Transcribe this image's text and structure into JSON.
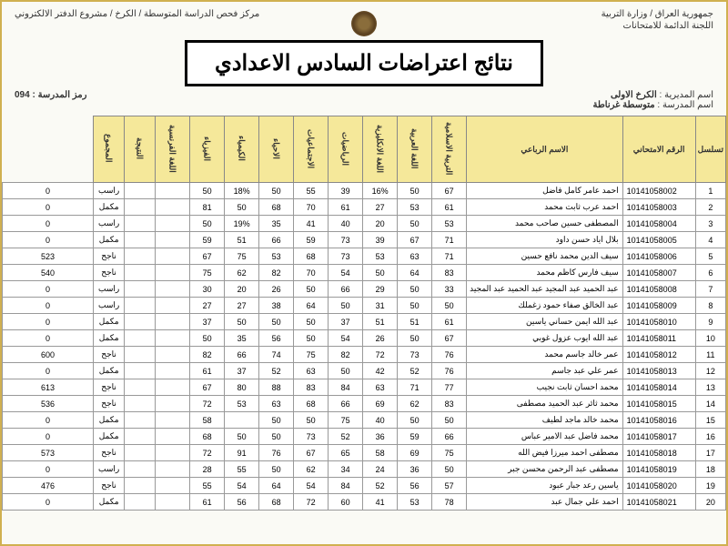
{
  "header": {
    "right1": "جمهورية العراق / وزارة التربية",
    "right2": "اللجنة الدائمة للامتحانات",
    "left1": "مركز فحص الدراسة المتوسطة /  الكرخ  / مشروع الدفتر الالكتروني",
    "school_code_label": "رمز المدرسة : ",
    "school_code": "094",
    "directorate_label": "اسم المديرية : ",
    "directorate": "الكرخ الاولى",
    "school_label": "اسم المدرسة : ",
    "school": "متوسطة غرناطة"
  },
  "title": "نتائج اعتراضات السادس الاعدادي",
  "columns": [
    "تسلسل",
    "الرقم الامتحاني",
    "الاسم الرباعي",
    "التربية الاسلامية",
    "اللغة العربية",
    "اللغة الانكليزية",
    "الرياضيات",
    "الاجتماعيات",
    "الاحياء",
    "الكيمياء",
    "الفيزياء",
    "اللغة الفرنسية",
    "النتيجة",
    "المجموع"
  ],
  "rows": [
    {
      "seq": "1",
      "exam": "10141058002",
      "name": "احمد عامر كامل فاضل",
      "s": [
        "67",
        "50",
        "16%",
        "39",
        "55",
        "50",
        "18%",
        "50",
        "",
        ""
      ],
      "res": "راسب",
      "tot": "0"
    },
    {
      "seq": "2",
      "exam": "10141058003",
      "name": "احمد عرب ثابت محمد",
      "s": [
        "61",
        "53",
        "27",
        "61",
        "70",
        "68",
        "50",
        "81",
        "",
        ""
      ],
      "res": "مكمل",
      "tot": "0"
    },
    {
      "seq": "3",
      "exam": "10141058004",
      "name": "المصطفى حسين صاحب محمد",
      "s": [
        "53",
        "50",
        "20",
        "40",
        "41",
        "35",
        "19%",
        "50",
        "",
        ""
      ],
      "res": "راسب",
      "tot": "0"
    },
    {
      "seq": "4",
      "exam": "10141058005",
      "name": "بلال اياد حسن داود",
      "s": [
        "71",
        "67",
        "39",
        "73",
        "59",
        "66",
        "51",
        "59",
        "",
        ""
      ],
      "res": "مكمل",
      "tot": "0"
    },
    {
      "seq": "5",
      "exam": "10141058006",
      "name": "سيف الدين محمد نافع حسين",
      "s": [
        "71",
        "63",
        "53",
        "73",
        "68",
        "53",
        "75",
        "67",
        "",
        ""
      ],
      "res": "ناجح",
      "tot": "523"
    },
    {
      "seq": "6",
      "exam": "10141058007",
      "name": "سيف فارس كاظم محمد",
      "s": [
        "83",
        "64",
        "50",
        "54",
        "70",
        "82",
        "62",
        "75",
        "",
        ""
      ],
      "res": "ناجح",
      "tot": "540"
    },
    {
      "seq": "7",
      "exam": "10141058008",
      "name": "عبد الحميد عبد المجيد عبد الحميد عبد المجيد",
      "s": [
        "33",
        "50",
        "29",
        "66",
        "50",
        "26",
        "20",
        "30",
        "",
        ""
      ],
      "res": "راسب",
      "tot": "0"
    },
    {
      "seq": "8",
      "exam": "10141058009",
      "name": "عبد الخالق صفاء حمود زغملك",
      "s": [
        "50",
        "50",
        "31",
        "50",
        "64",
        "38",
        "27",
        "27",
        "",
        ""
      ],
      "res": "راسب",
      "tot": "0"
    },
    {
      "seq": "9",
      "exam": "10141058010",
      "name": "عبد الله ايمن حساني ياسين",
      "s": [
        "61",
        "51",
        "51",
        "37",
        "50",
        "50",
        "50",
        "37",
        "",
        ""
      ],
      "res": "مكمل",
      "tot": "0"
    },
    {
      "seq": "10",
      "exam": "10141058011",
      "name": "عبد الله ايوب عزول غوبي",
      "s": [
        "67",
        "50",
        "26",
        "54",
        "50",
        "56",
        "35",
        "50",
        "",
        ""
      ],
      "res": "مكمل",
      "tot": "0"
    },
    {
      "seq": "11",
      "exam": "10141058012",
      "name": "عمر خالد جاسم محمد",
      "s": [
        "76",
        "73",
        "72",
        "82",
        "75",
        "74",
        "66",
        "82",
        "",
        ""
      ],
      "res": "ناجح",
      "tot": "600"
    },
    {
      "seq": "12",
      "exam": "10141058013",
      "name": "عمر علي عبد جاسم",
      "s": [
        "76",
        "52",
        "42",
        "50",
        "63",
        "52",
        "37",
        "61",
        "",
        ""
      ],
      "res": "مكمل",
      "tot": "0"
    },
    {
      "seq": "13",
      "exam": "10141058014",
      "name": "محمد احسان ثابت نجيب",
      "s": [
        "77",
        "71",
        "63",
        "84",
        "83",
        "88",
        "80",
        "67",
        "",
        ""
      ],
      "res": "ناجح",
      "tot": "613"
    },
    {
      "seq": "14",
      "exam": "10141058015",
      "name": "محمد ثائر عبد الحميد مصطفى",
      "s": [
        "83",
        "62",
        "69",
        "66",
        "68",
        "63",
        "53",
        "72",
        "",
        ""
      ],
      "res": "ناجح",
      "tot": "536"
    },
    {
      "seq": "15",
      "exam": "10141058016",
      "name": "محمد خالد ماجد لطيف",
      "s": [
        "50",
        "50",
        "40",
        "75",
        "50",
        "50",
        "",
        "58",
        "",
        ""
      ],
      "res": "مكمل",
      "tot": "0"
    },
    {
      "seq": "16",
      "exam": "10141058017",
      "name": "محمد فاضل عبد الامير عباس",
      "s": [
        "66",
        "59",
        "36",
        "52",
        "73",
        "50",
        "50",
        "68",
        "",
        ""
      ],
      "res": "مكمل",
      "tot": "0"
    },
    {
      "seq": "17",
      "exam": "10141058018",
      "name": "مصطفى احمد ميرزا فيض الله",
      "s": [
        "75",
        "69",
        "58",
        "65",
        "67",
        "76",
        "91",
        "72",
        "",
        ""
      ],
      "res": "ناجح",
      "tot": "573"
    },
    {
      "seq": "18",
      "exam": "10141058019",
      "name": "مصطفى عبد الرحمن محسن جبر",
      "s": [
        "50",
        "36",
        "24",
        "34",
        "62",
        "50",
        "55",
        "28",
        "",
        ""
      ],
      "res": "راسب",
      "tot": "0"
    },
    {
      "seq": "19",
      "exam": "10141058020",
      "name": "ياسين رعد جبار عبود",
      "s": [
        "57",
        "56",
        "52",
        "84",
        "54",
        "64",
        "54",
        "55",
        "",
        ""
      ],
      "res": "ناجح",
      "tot": "476"
    },
    {
      "seq": "20",
      "exam": "10141058021",
      "name": "احمد علي جمال عبد",
      "s": [
        "78",
        "53",
        "41",
        "60",
        "72",
        "68",
        "56",
        "61",
        "",
        ""
      ],
      "res": "مكمل",
      "tot": "0"
    }
  ],
  "style": {
    "header_bg": "#f5e89a",
    "border_color": "#999999",
    "page_border": "#d0b050",
    "text_color": "#333333"
  }
}
